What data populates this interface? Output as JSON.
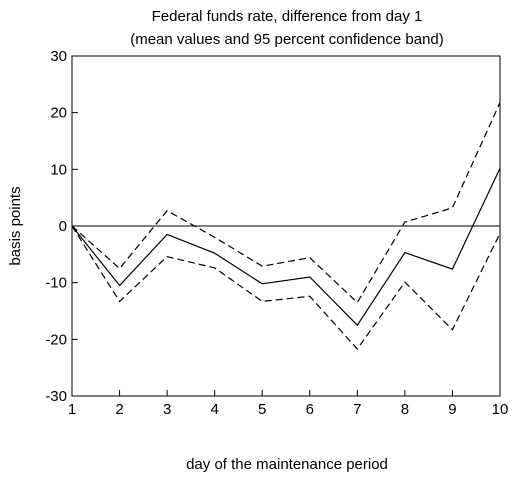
{
  "chart_data": {
    "type": "line",
    "title": [
      "Federal funds rate, difference from day 1",
      "(mean values and 95 percent confidence band)"
    ],
    "xlabel": "day of the maintenance period",
    "ylabel": "basis points",
    "x": [
      1,
      2,
      3,
      4,
      5,
      6,
      7,
      8,
      9,
      10
    ],
    "xlim": [
      1,
      10
    ],
    "ylim": [
      -30,
      30
    ],
    "xticks": [
      "1",
      "2",
      "3",
      "4",
      "5",
      "6",
      "7",
      "8",
      "9",
      "10"
    ],
    "yticks": [
      "30",
      "20",
      "10",
      "0",
      "-10",
      "-20",
      "-30"
    ],
    "ytick_values": [
      30,
      20,
      10,
      0,
      -10,
      -20,
      -30
    ],
    "zero_line": true,
    "grid": false,
    "series": [
      {
        "style": "solid",
        "values": [
          0,
          -10.5,
          -1.5,
          -4.8,
          -10.2,
          -9.0,
          -17.5,
          -4.7,
          -7.6,
          10.2
        ]
      },
      {
        "style": "dashed",
        "values": [
          0,
          -7.5,
          2.7,
          -2.0,
          -7.1,
          -5.6,
          -13.5,
          0.7,
          3.2,
          21.8
        ]
      },
      {
        "style": "dashed",
        "values": [
          0,
          -13.3,
          -5.4,
          -7.4,
          -13.3,
          -12.4,
          -21.7,
          -9.9,
          -18.3,
          -1.3
        ]
      }
    ]
  }
}
